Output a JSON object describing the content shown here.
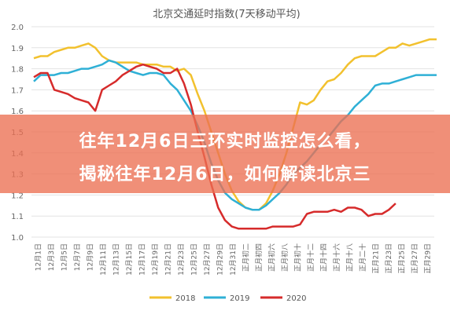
{
  "chart_data": {
    "type": "line",
    "title": "北京交通延时指数(7天移动平均)",
    "ylim": [
      1.0,
      2.0
    ],
    "yticks": [
      "1.0",
      "1.1",
      "1.2",
      "1.3",
      "1.4",
      "1.5",
      "1.6",
      "1.7",
      "1.8",
      "1.9",
      "2.0"
    ],
    "xlabels": [
      "12月1日",
      "12月3日",
      "12月5日",
      "12月7日",
      "12月9日",
      "12月11日",
      "12月13日",
      "12月15日",
      "12月17日",
      "12月19日",
      "12月21日",
      "12月23日",
      "12月25日",
      "12月27日",
      "12月29日",
      "12月31日",
      "正月初二",
      "正月初四",
      "正月初六",
      "正月初八",
      "正月初十",
      "正月十二",
      "正月十四",
      "正月十六",
      "正月十八",
      "正月二十",
      "正月21日",
      "正月23日",
      "正月25日",
      "正月27日",
      "正月29日"
    ],
    "grid": true,
    "legend_position": "bottom",
    "series": [
      {
        "name": "2018",
        "color": "#f2c12e",
        "values": [
          1.85,
          1.86,
          1.86,
          1.88,
          1.89,
          1.9,
          1.9,
          1.91,
          1.92,
          1.9,
          1.86,
          1.84,
          1.83,
          1.83,
          1.83,
          1.83,
          1.82,
          1.82,
          1.82,
          1.81,
          1.81,
          1.79,
          1.8,
          1.77,
          1.68,
          1.6,
          1.5,
          1.4,
          1.3,
          1.22,
          1.17,
          1.14,
          1.13,
          1.13,
          1.16,
          1.22,
          1.3,
          1.4,
          1.52,
          1.64,
          1.63,
          1.65,
          1.7,
          1.74,
          1.75,
          1.78,
          1.82,
          1.85,
          1.86,
          1.86,
          1.86,
          1.88,
          1.9,
          1.9,
          1.92,
          1.91,
          1.92,
          1.93,
          1.94,
          1.94
        ]
      },
      {
        "name": "2019",
        "color": "#2fb0d6",
        "values": [
          1.74,
          1.77,
          1.77,
          1.77,
          1.78,
          1.78,
          1.79,
          1.8,
          1.8,
          1.81,
          1.82,
          1.84,
          1.83,
          1.81,
          1.79,
          1.78,
          1.77,
          1.78,
          1.78,
          1.77,
          1.73,
          1.7,
          1.65,
          1.6,
          1.53,
          1.45,
          1.35,
          1.27,
          1.21,
          1.18,
          1.16,
          1.14,
          1.13,
          1.13,
          1.15,
          1.18,
          1.21,
          1.25,
          1.3,
          1.33,
          1.36,
          1.4,
          1.44,
          1.47,
          1.51,
          1.55,
          1.58,
          1.62,
          1.65,
          1.68,
          1.72,
          1.73,
          1.73,
          1.74,
          1.75,
          1.76,
          1.77,
          1.77,
          1.77,
          1.77
        ]
      },
      {
        "name": "2020",
        "color": "#d62b2b",
        "values": [
          1.76,
          1.78,
          1.78,
          1.7,
          1.69,
          1.68,
          1.66,
          1.65,
          1.64,
          1.6,
          1.7,
          1.72,
          1.74,
          1.77,
          1.79,
          1.81,
          1.82,
          1.81,
          1.8,
          1.78,
          1.78,
          1.8,
          1.73,
          1.63,
          1.5,
          1.38,
          1.25,
          1.14,
          1.08,
          1.05,
          1.04,
          1.04,
          1.04,
          1.04,
          1.04,
          1.05,
          1.05,
          1.05,
          1.05,
          1.06,
          1.11,
          1.12,
          1.12,
          1.12,
          1.13,
          1.12,
          1.14,
          1.14,
          1.13,
          1.1,
          1.11,
          1.11,
          1.13,
          1.16
        ]
      }
    ]
  },
  "headline": {
    "line1": "往年12月6日三环实时监控怎么看，",
    "line2": "揭秘往年12月6日，如何解读北京三"
  }
}
